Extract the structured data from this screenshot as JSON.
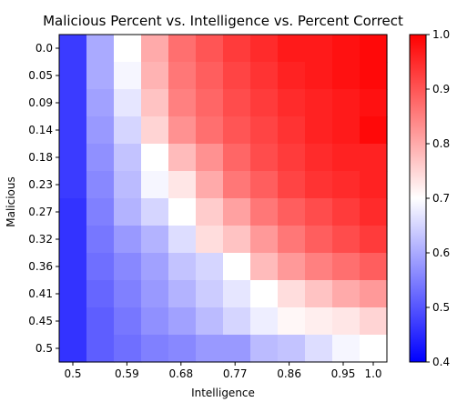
{
  "chart_data": {
    "type": "heatmap",
    "title": "Malicious Percent vs. Intelligence vs. Percent Correct",
    "xlabel": "Intelligence",
    "ylabel": "Malicious",
    "x_tick_labels": [
      "0.5",
      "0.59",
      "0.68",
      "0.77",
      "0.86",
      "0.95",
      "1.0"
    ],
    "y_tick_labels": [
      "0.0",
      "0.05",
      "0.09",
      "0.14",
      "0.18",
      "0.23",
      "0.27",
      "0.32",
      "0.36",
      "0.41",
      "0.45",
      "0.5"
    ],
    "colorbar": {
      "range": [
        0.4,
        1.0
      ],
      "tick_labels": [
        "1.0",
        "0.9",
        "0.8",
        "0.7",
        "0.6",
        "0.5",
        "0.4"
      ],
      "colormap": "bwr"
    },
    "grid": false,
    "values": [
      [
        0.47,
        0.6,
        0.7,
        0.8,
        0.87,
        0.9,
        0.93,
        0.95,
        0.97,
        0.97,
        0.98,
        0.99
      ],
      [
        0.47,
        0.6,
        0.69,
        0.79,
        0.86,
        0.89,
        0.92,
        0.94,
        0.96,
        0.97,
        0.98,
        0.99
      ],
      [
        0.47,
        0.59,
        0.67,
        0.77,
        0.85,
        0.88,
        0.91,
        0.93,
        0.95,
        0.96,
        0.97,
        0.98
      ],
      [
        0.47,
        0.58,
        0.65,
        0.75,
        0.83,
        0.87,
        0.9,
        0.92,
        0.94,
        0.96,
        0.97,
        0.99
      ],
      [
        0.47,
        0.57,
        0.63,
        0.7,
        0.78,
        0.83,
        0.88,
        0.91,
        0.93,
        0.95,
        0.96,
        0.96
      ],
      [
        0.47,
        0.56,
        0.62,
        0.69,
        0.73,
        0.8,
        0.86,
        0.89,
        0.92,
        0.94,
        0.95,
        0.96
      ],
      [
        0.46,
        0.55,
        0.61,
        0.65,
        0.7,
        0.76,
        0.81,
        0.86,
        0.89,
        0.91,
        0.93,
        0.95
      ],
      [
        0.46,
        0.54,
        0.58,
        0.61,
        0.66,
        0.74,
        0.77,
        0.82,
        0.86,
        0.89,
        0.91,
        0.93
      ],
      [
        0.46,
        0.53,
        0.56,
        0.59,
        0.63,
        0.65,
        0.7,
        0.78,
        0.82,
        0.85,
        0.87,
        0.89
      ],
      [
        0.46,
        0.52,
        0.55,
        0.58,
        0.61,
        0.64,
        0.67,
        0.7,
        0.74,
        0.77,
        0.8,
        0.82
      ],
      [
        0.46,
        0.51,
        0.54,
        0.57,
        0.59,
        0.62,
        0.65,
        0.68,
        0.71,
        0.72,
        0.73,
        0.75
      ],
      [
        0.46,
        0.51,
        0.53,
        0.55,
        0.56,
        0.58,
        0.58,
        0.62,
        0.63,
        0.66,
        0.69,
        0.7
      ]
    ]
  }
}
